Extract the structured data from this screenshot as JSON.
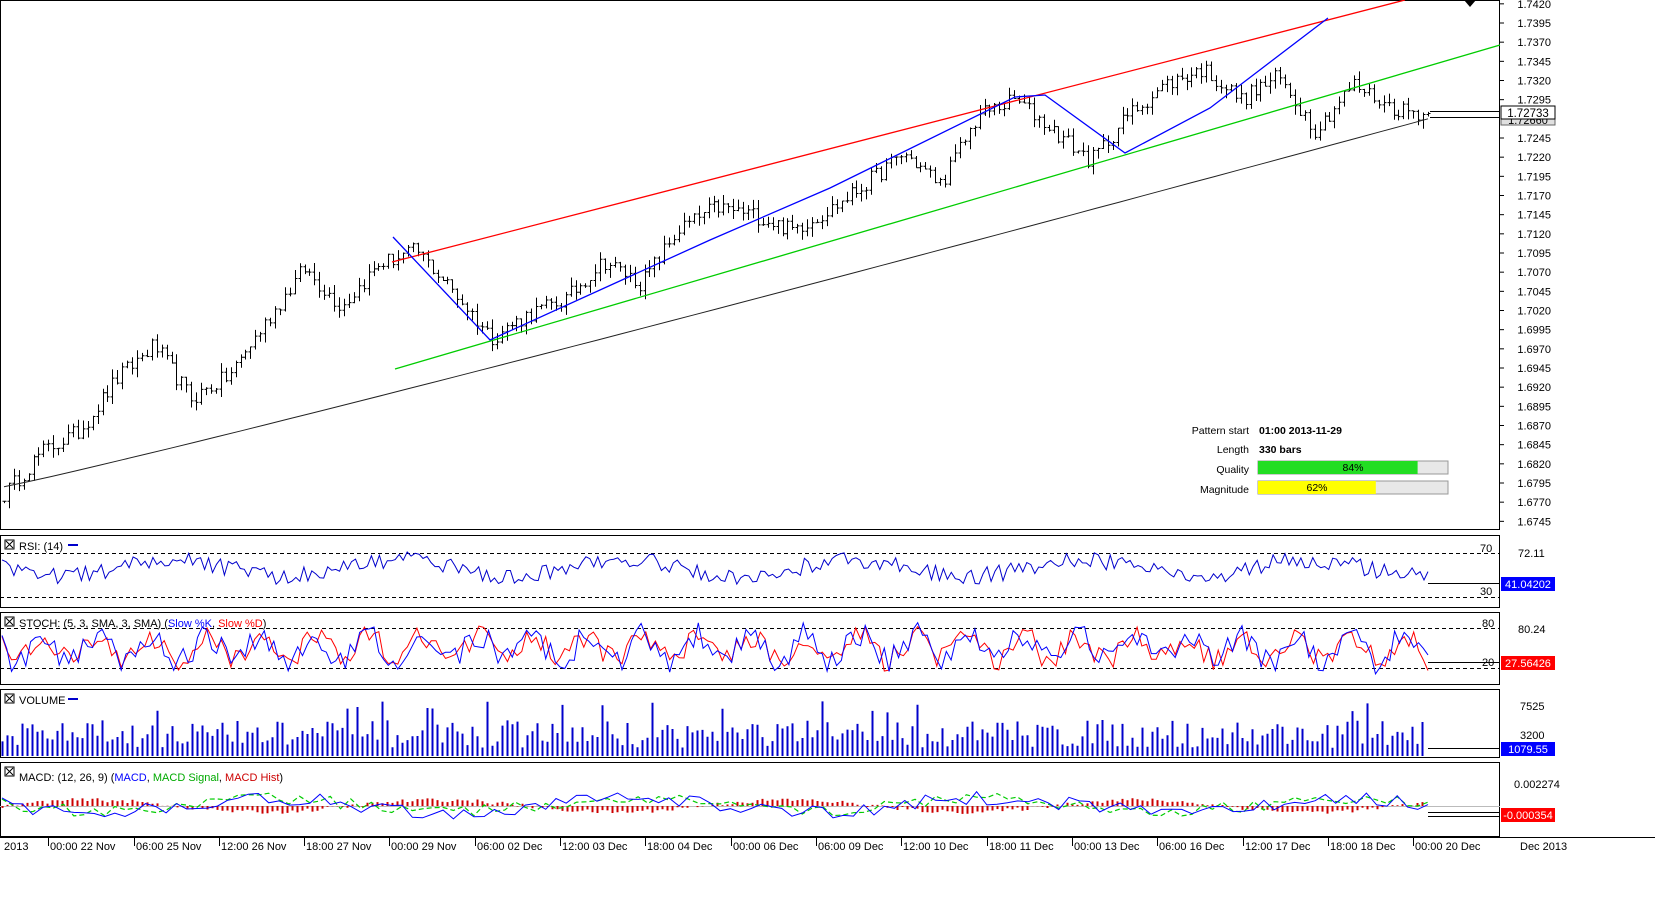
{
  "chart_data": {
    "type": "ohlc",
    "price_axis": {
      "ticks": [
        "1.7420",
        "1.7395",
        "1.7370",
        "1.7345",
        "1.7320",
        "1.7295",
        "1.7245",
        "1.7220",
        "1.7195",
        "1.7170",
        "1.7145",
        "1.7120",
        "1.7095",
        "1.7070",
        "1.7045",
        "1.7020",
        "1.6995",
        "1.6970",
        "1.6945",
        "1.6920",
        "1.6895",
        "1.6870",
        "1.6845",
        "1.6820",
        "1.6795",
        "1.6770",
        "1.6745"
      ],
      "range": [
        1.6735,
        1.7425
      ],
      "current_price": "1.72733",
      "second_label": "1.72660"
    },
    "time_axis": [
      "2013",
      "00:00 22 Nov",
      "06:00 25 Nov",
      "12:00 26 Nov",
      "18:00 27 Nov",
      "00:00 29 Nov",
      "06:00 02 Dec",
      "12:00 03 Dec",
      "18:00 04 Dec",
      "00:00 06 Dec",
      "06:00 09 Dec",
      "12:00 10 Dec",
      "18:00 11 Dec",
      "00:00 13 Dec",
      "06:00 16 Dec",
      "12:00 17 Dec",
      "18:00 18 Dec",
      "00:00 20 Dec",
      "Dec 2013"
    ],
    "price_path": [
      1.678,
      1.6835,
      1.6862,
      1.693,
      1.6975,
      1.6905,
      1.6935,
      1.7005,
      1.7075,
      1.7025,
      1.708,
      1.7098,
      1.7045,
      1.6985,
      1.7015,
      1.7035,
      1.7085,
      1.7055,
      1.7125,
      1.7155,
      1.7145,
      1.7125,
      1.715,
      1.7185,
      1.7225,
      1.7185,
      1.7275,
      1.7295,
      1.7255,
      1.7215,
      1.7275,
      1.7315,
      1.7335,
      1.7295,
      1.7325,
      1.7255,
      1.7315,
      1.7285,
      1.7275
    ],
    "pattern": {
      "start": "01:00 2013-11-29",
      "length": "330 bars",
      "quality": 84,
      "quality_label": "84%",
      "magnitude": 62,
      "magnitude_label": "62%",
      "labels": {
        "start": "Pattern start",
        "length": "Length",
        "quality": "Quality",
        "magnitude": "Magnitude"
      }
    },
    "lines": {
      "resistance_color": "#ff0000",
      "support_color": "#00cc00",
      "zigzag_color": "#0000ff",
      "ma_color": "#000000"
    },
    "rsi": {
      "label": "RSI: (14)",
      "levels": [
        "70",
        "30"
      ],
      "upper_value": "72.11",
      "value": "41.04202",
      "color": "#0000cc"
    },
    "stoch": {
      "label_prefix": "STOCH: (5, 3, SMA, 3, SMA) (",
      "k_label": "Slow %K",
      "d_label": "Slow %D",
      "label_suffix": ")",
      "levels": [
        "80",
        "20"
      ],
      "upper_value": "80.24",
      "value": "27.56426",
      "k_color": "#0000ff",
      "d_color": "#ff0000"
    },
    "volume": {
      "label": "VOLUME",
      "ticks": [
        "7525",
        "3200"
      ],
      "value": "1079.55",
      "color": "#0000cc"
    },
    "macd": {
      "label_prefix": "MACD: (12, 26, 9) (",
      "macd_label": "MACD",
      "signal_label": "MACD Signal",
      "hist_label": "MACD Hist",
      "label_suffix": ")",
      "upper_value": "0.002274",
      "value": "-0.000354",
      "macd_color": "#0000ff",
      "signal_color": "#00cc00",
      "hist_color": "#cc0000"
    }
  }
}
